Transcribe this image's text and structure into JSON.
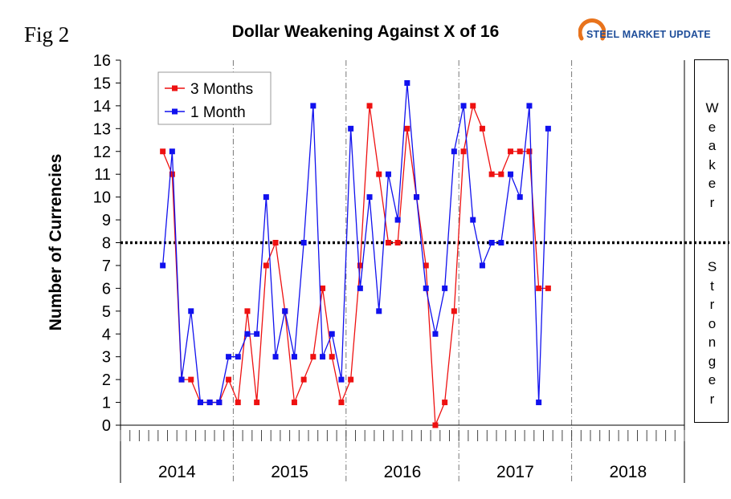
{
  "figure_label": "Fig 2",
  "logo_text": "STEEL MARKET UPDATE",
  "side_labels": {
    "upper": "Weaker",
    "lower": "Stronger"
  },
  "colors": {
    "three_month": "#ee1111",
    "one_month": "#1111ee",
    "threshold": "#000000",
    "logo_blue": "#1f4e9a",
    "logo_orange": "#e8731c"
  },
  "chart_data": {
    "type": "line",
    "title": "Dollar Weakening Against X of 16",
    "ylabel": "Number of Currencies",
    "xlabel": "",
    "ylim": [
      0,
      16
    ],
    "yticks": [
      0,
      1,
      2,
      3,
      4,
      5,
      6,
      7,
      8,
      9,
      10,
      11,
      12,
      13,
      14,
      15,
      16
    ],
    "x_unit": "month",
    "years": [
      "2014",
      "2015",
      "2016",
      "2017",
      "2018"
    ],
    "months_per_year": 12,
    "x_label_note": "x = month index, 1 = Jan 2014",
    "threshold": 8,
    "grid": "vertical dashed lines at year boundaries",
    "legend_position": "top-left",
    "series": [
      {
        "name": "3 Months",
        "color": "#ee1111",
        "x": [
          5,
          6,
          7,
          8,
          9,
          10,
          11,
          12,
          13,
          14,
          15,
          16,
          17,
          18,
          19,
          20,
          21,
          22,
          23,
          24,
          25,
          26,
          27,
          28,
          29,
          30,
          31,
          32,
          33,
          34,
          35,
          36,
          37,
          38,
          39,
          40,
          41,
          42,
          43,
          44,
          45,
          46,
          47,
          48,
          49,
          50,
          51
        ],
        "values": [
          12,
          11,
          2,
          2,
          1,
          1,
          1,
          2,
          1,
          5,
          1,
          7,
          8,
          5,
          1,
          2,
          3,
          6,
          3,
          1,
          2,
          7,
          14,
          11,
          8,
          8,
          13,
          10,
          7,
          0,
          1,
          5,
          12,
          14,
          13,
          11,
          11,
          12,
          12,
          12,
          6,
          6,
          null,
          null,
          null,
          null,
          null
        ]
      },
      {
        "name": "1 Month",
        "color": "#1111ee",
        "x": [
          5,
          6,
          7,
          8,
          9,
          10,
          11,
          12,
          13,
          14,
          15,
          16,
          17,
          18,
          19,
          20,
          21,
          22,
          23,
          24,
          25,
          26,
          27,
          28,
          29,
          30,
          31,
          32,
          33,
          34,
          35,
          36,
          37,
          38,
          39,
          40,
          41,
          42,
          43,
          44,
          45,
          46,
          47,
          48,
          49,
          50,
          51
        ],
        "values": [
          7,
          12,
          2,
          5,
          1,
          1,
          1,
          3,
          3,
          4,
          4,
          10,
          3,
          5,
          3,
          8,
          14,
          3,
          4,
          2,
          13,
          6,
          10,
          5,
          11,
          9,
          15,
          10,
          6,
          4,
          6,
          12,
          14,
          9,
          7,
          8,
          8,
          11,
          10,
          14,
          1,
          13,
          null,
          null,
          null,
          null,
          null
        ]
      }
    ]
  }
}
